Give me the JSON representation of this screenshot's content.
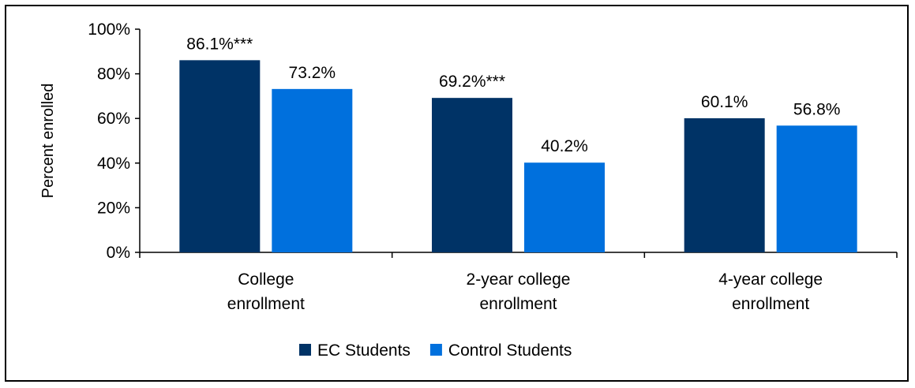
{
  "chart_data": {
    "type": "bar",
    "title": "",
    "xlabel": "",
    "ylabel": "Percent enrolled",
    "ylim": [
      0,
      100
    ],
    "yticks": [
      0,
      20,
      40,
      60,
      80,
      100
    ],
    "ytick_labels": [
      "0%",
      "20%",
      "40%",
      "60%",
      "80%",
      "100%"
    ],
    "categories": [
      [
        "College",
        "enrollment"
      ],
      [
        "2-year college",
        "enrollment"
      ],
      [
        "4-year college",
        "enrollment"
      ]
    ],
    "series": [
      {
        "name": "EC Students",
        "color": "#003366",
        "values": [
          86.1,
          69.2,
          60.1
        ],
        "labels": [
          "86.1%***",
          "69.2%***",
          "60.1%"
        ]
      },
      {
        "name": "Control Students",
        "color": "#0070dd",
        "values": [
          73.2,
          40.2,
          56.8
        ],
        "labels": [
          "73.2%",
          "40.2%",
          "56.8%"
        ]
      }
    ],
    "grid": false,
    "legend_position": "bottom"
  }
}
